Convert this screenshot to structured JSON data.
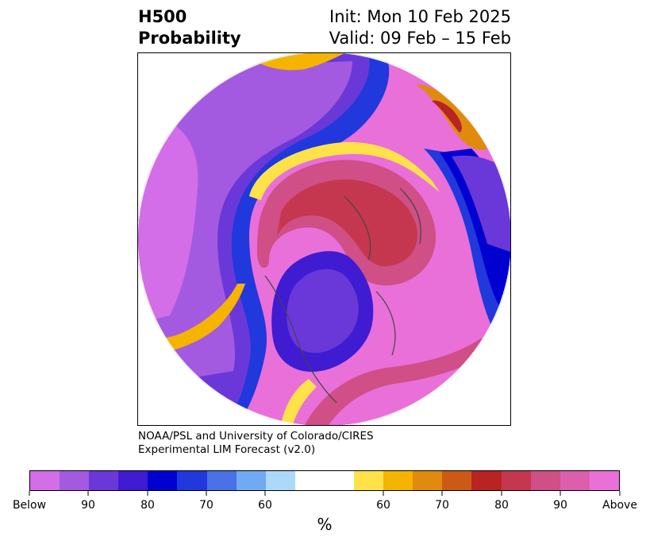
{
  "title": {
    "variable": "H500",
    "kind": "Probability",
    "init": "Init: Mon 10 Feb 2025",
    "valid": "Valid: 09 Feb – 15 Feb"
  },
  "credit": {
    "line1": "NOAA/PSL and University of Colorado/CIRES",
    "line2": "Experimental LIM Forecast (v2.0)"
  },
  "colorbar": {
    "colors": [
      "#d36de8",
      "#a35ae0",
      "#6a38d8",
      "#3f1bd2",
      "#0000d0",
      "#2038dc",
      "#4872e6",
      "#70aaf2",
      "#acd8fa",
      "#ffffff",
      "#ffffff",
      "#ffe24a",
      "#f4b400",
      "#e08a0e",
      "#cc5a16",
      "#b82424",
      "#c4374e",
      "#cf4f86",
      "#dc5eac",
      "#e870d8"
    ],
    "labels": [
      "Below",
      "90",
      "80",
      "70",
      "60",
      "60",
      "70",
      "80",
      "90",
      "Above"
    ],
    "unit": "%"
  }
}
